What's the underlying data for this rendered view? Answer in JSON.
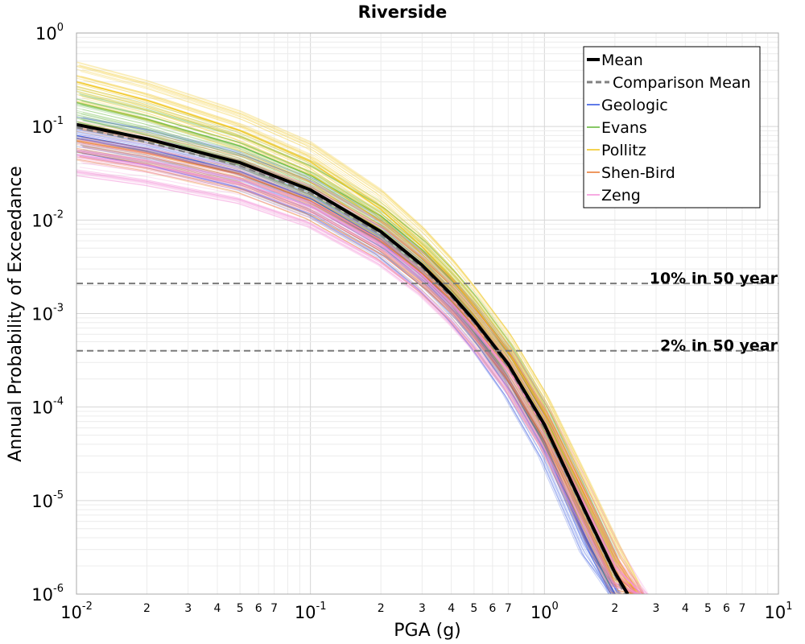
{
  "chart_data": {
    "type": "line",
    "title": "Riverside",
    "xlabel": "PGA (g)",
    "ylabel": "Annual Probability of Exceedance",
    "x_scale": "log",
    "y_scale": "log",
    "xlim": [
      0.01,
      10
    ],
    "ylim": [
      1e-06,
      1
    ],
    "grid": true,
    "legend_position": "top-right",
    "x_ticks": [
      {
        "value": 0.01,
        "base": "10",
        "exp": "-2"
      },
      {
        "value": 0.1,
        "base": "10",
        "exp": "-1"
      },
      {
        "value": 1,
        "base": "10",
        "exp": "0"
      },
      {
        "value": 10,
        "base": "10",
        "exp": "1"
      }
    ],
    "x_minor_labels": [
      "2",
      "3",
      "4",
      "5",
      "6",
      "7"
    ],
    "y_ticks": [
      {
        "value": 1,
        "base": "10",
        "exp": "0"
      },
      {
        "value": 0.1,
        "base": "10",
        "exp": "-1"
      },
      {
        "value": 0.01,
        "base": "10",
        "exp": "-2"
      },
      {
        "value": 0.001,
        "base": "10",
        "exp": "-3"
      },
      {
        "value": 0.0001,
        "base": "10",
        "exp": "-4"
      },
      {
        "value": 1e-05,
        "base": "10",
        "exp": "-5"
      },
      {
        "value": 1e-06,
        "base": "10",
        "exp": "-6"
      }
    ],
    "reference_lines": [
      {
        "label": "10% in 50 year",
        "y": 0.0021
      },
      {
        "label": "2% in 50 year",
        "y": 0.0004
      }
    ],
    "series": [
      {
        "name": "Mean",
        "color": "#000000",
        "style": "solid",
        "x": [
          0.01,
          0.02,
          0.05,
          0.1,
          0.2,
          0.3,
          0.4,
          0.5,
          0.7,
          1.0,
          1.5,
          2.0,
          2.27
        ],
        "y": [
          0.105,
          0.074,
          0.041,
          0.021,
          0.0075,
          0.0033,
          0.0016,
          0.00085,
          0.00029,
          6.5e-05,
          7.5e-06,
          1.7e-06,
          1e-06
        ]
      },
      {
        "name": "Comparison Mean",
        "color": "#808080",
        "style": "dashed",
        "x": [
          0.01,
          0.02,
          0.05,
          0.1,
          0.2,
          0.3,
          0.4,
          0.5,
          0.7,
          1.0,
          1.5,
          2.0,
          2.2
        ],
        "y": [
          0.098,
          0.068,
          0.038,
          0.0195,
          0.007,
          0.0031,
          0.0015,
          0.0008,
          0.00027,
          6e-05,
          7e-06,
          1.6e-06,
          1e-06
        ]
      },
      {
        "name": "Geologic",
        "color": "#2b4fe0",
        "style": "solid",
        "x": [
          0.01,
          0.02,
          0.05,
          0.1,
          0.2,
          0.3,
          0.4,
          0.5,
          0.7,
          1.0,
          1.5,
          2.0
        ],
        "y": [
          0.08,
          0.058,
          0.033,
          0.017,
          0.0062,
          0.0027,
          0.0013,
          0.00066,
          0.0002,
          4.2e-05,
          4e-06,
          8e-07
        ]
      },
      {
        "name": "Evans",
        "color": "#5fb533",
        "style": "solid",
        "x": [
          0.01,
          0.02,
          0.05,
          0.1,
          0.2,
          0.3,
          0.4,
          0.5,
          0.7,
          1.0,
          1.5,
          2.0
        ],
        "y": [
          0.18,
          0.12,
          0.062,
          0.03,
          0.011,
          0.0048,
          0.0023,
          0.0012,
          0.00038,
          8.2e-05,
          9.5e-06,
          2e-06
        ]
      },
      {
        "name": "Pollitz",
        "color": "#f0c419",
        "style": "solid",
        "x": [
          0.01,
          0.02,
          0.05,
          0.1,
          0.2,
          0.3,
          0.4,
          0.5,
          0.7,
          1.0,
          1.5,
          2.0,
          2.5
        ],
        "y": [
          0.3,
          0.19,
          0.09,
          0.042,
          0.013,
          0.0052,
          0.0024,
          0.0012,
          0.00039,
          8.8e-05,
          1.1e-05,
          2.4e-06,
          8e-07
        ]
      },
      {
        "name": "Shen-Bird",
        "color": "#e8762b",
        "style": "solid",
        "x": [
          0.01,
          0.02,
          0.05,
          0.1,
          0.2,
          0.3,
          0.4,
          0.5,
          0.7,
          1.0,
          1.5,
          2.0,
          2.5
        ],
        "y": [
          0.07,
          0.052,
          0.031,
          0.016,
          0.006,
          0.0027,
          0.0014,
          0.00074,
          0.00025,
          5.8e-05,
          7.2e-06,
          1.6e-06,
          6e-07
        ]
      },
      {
        "name": "Zeng",
        "color": "#f48fd8",
        "style": "solid",
        "x": [
          0.01,
          0.02,
          0.05,
          0.1,
          0.2,
          0.3,
          0.4,
          0.5,
          0.7,
          1.0,
          1.5,
          2.0,
          2.6
        ],
        "y": [
          0.05,
          0.039,
          0.025,
          0.014,
          0.0055,
          0.0026,
          0.0013,
          0.0007,
          0.00025,
          6e-05,
          8.5e-06,
          2e-06,
          6e-07
        ]
      }
    ]
  }
}
